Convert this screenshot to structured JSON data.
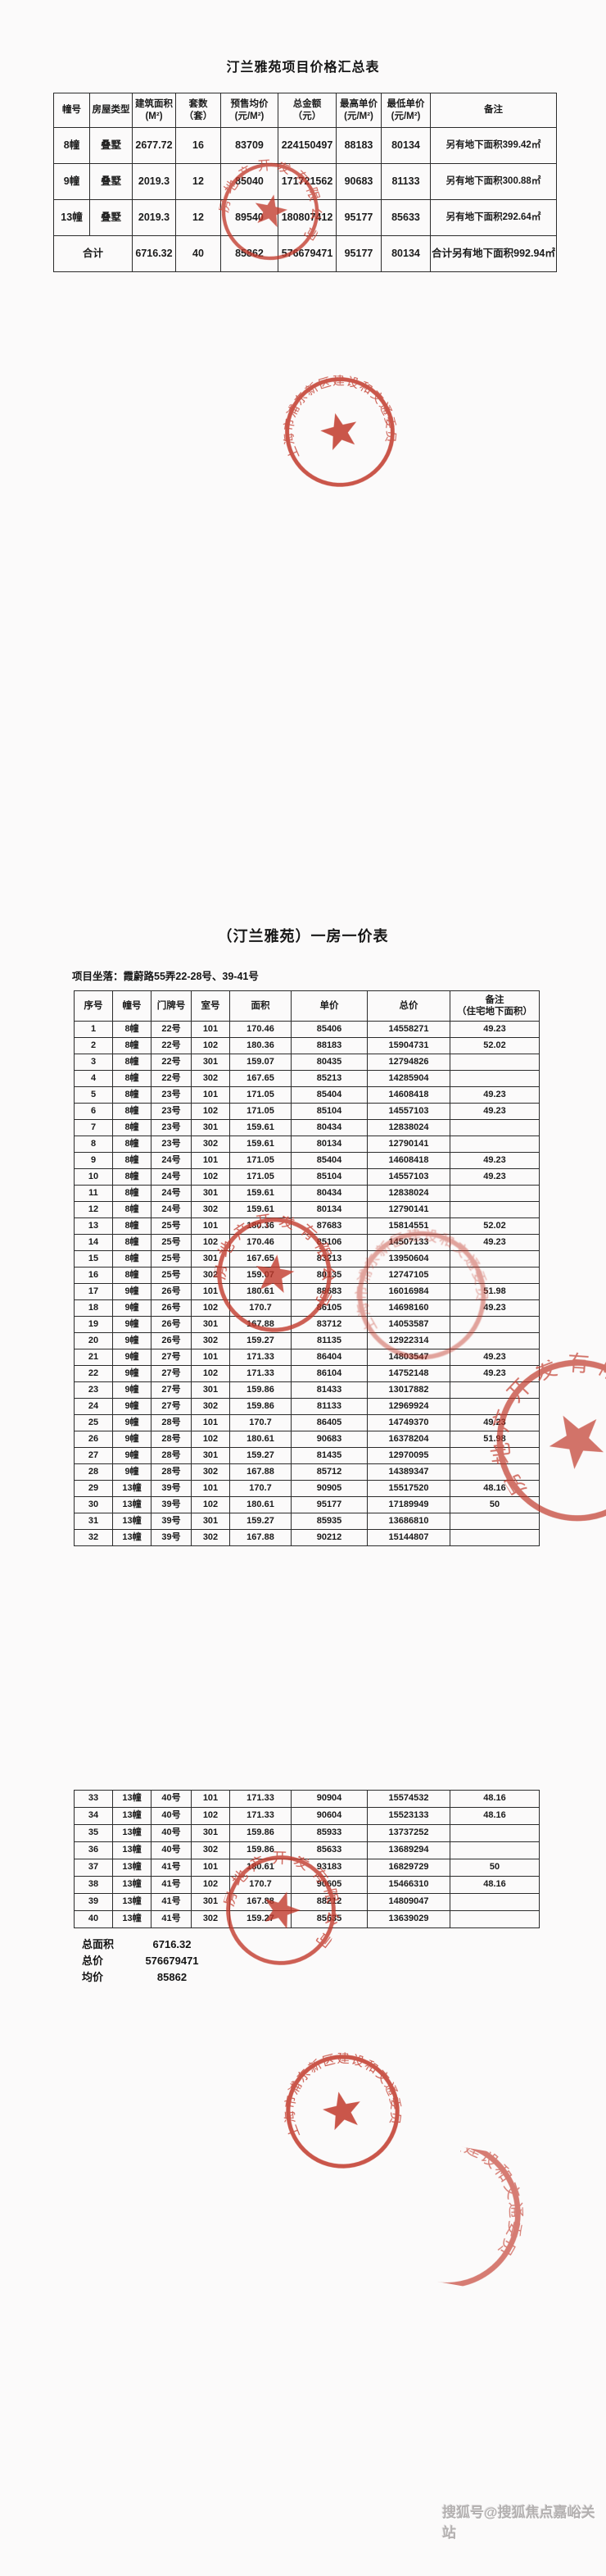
{
  "page": {
    "watermark": "搜狐号@搜狐焦点嘉峪关站",
    "stamp_color": "#c23a2c",
    "background": "#fbfafa"
  },
  "summary_table": {
    "title": "汀兰雅苑项目价格汇总表",
    "headers": [
      "幢号",
      "房屋类型",
      "建筑面积\n(M²)",
      "套数\n（套）",
      "预售均价\n(元/M²)",
      "总金额\n（元）",
      "最高单价\n(元/M²)",
      "最低单价\n(元/M²)",
      "备注"
    ],
    "rows": [
      [
        "8幢",
        "叠墅",
        "2677.72",
        "16",
        "83709",
        "224150497",
        "88183",
        "80134",
        "另有地下面积399.42㎡"
      ],
      [
        "9幢",
        "叠墅",
        "2019.3",
        "12",
        "85040",
        "171721562",
        "90683",
        "81133",
        "另有地下面积300.88㎡"
      ],
      [
        "13幢",
        "叠墅",
        "2019.3",
        "12",
        "89540",
        "180807412",
        "95177",
        "85633",
        "另有地下面积292.64㎡"
      ],
      [
        "合计",
        null,
        "6716.32",
        "40",
        "85862",
        "576679471",
        "95177",
        "80134",
        "合计另有地下面积992.94㎡"
      ]
    ]
  },
  "price_table": {
    "title": "（汀兰雅苑）一房一价表",
    "location_label": "项目坐落：",
    "location": "霞蔚路55弄22-28号、39-41号",
    "headers": [
      "序号",
      "幢号",
      "门牌号",
      "室号",
      "面积",
      "单价",
      "总价",
      "备注\n（住宅地下面积）"
    ],
    "rows": [
      [
        "1",
        "8幢",
        "22号",
        "101",
        "170.46",
        "85406",
        "14558271",
        "49.23"
      ],
      [
        "2",
        "8幢",
        "22号",
        "102",
        "180.36",
        "88183",
        "15904731",
        "52.02"
      ],
      [
        "3",
        "8幢",
        "22号",
        "301",
        "159.07",
        "80435",
        "12794826",
        ""
      ],
      [
        "4",
        "8幢",
        "22号",
        "302",
        "167.65",
        "85213",
        "14285904",
        ""
      ],
      [
        "5",
        "8幢",
        "23号",
        "101",
        "171.05",
        "85404",
        "14608418",
        "49.23"
      ],
      [
        "6",
        "8幢",
        "23号",
        "102",
        "171.05",
        "85104",
        "14557103",
        "49.23"
      ],
      [
        "7",
        "8幢",
        "23号",
        "301",
        "159.61",
        "80434",
        "12838024",
        ""
      ],
      [
        "8",
        "8幢",
        "23号",
        "302",
        "159.61",
        "80134",
        "12790141",
        ""
      ],
      [
        "9",
        "8幢",
        "24号",
        "101",
        "171.05",
        "85404",
        "14608418",
        "49.23"
      ],
      [
        "10",
        "8幢",
        "24号",
        "102",
        "171.05",
        "85104",
        "14557103",
        "49.23"
      ],
      [
        "11",
        "8幢",
        "24号",
        "301",
        "159.61",
        "80434",
        "12838024",
        ""
      ],
      [
        "12",
        "8幢",
        "24号",
        "302",
        "159.61",
        "80134",
        "12790141",
        ""
      ],
      [
        "13",
        "8幢",
        "25号",
        "101",
        "180.36",
        "87683",
        "15814551",
        "52.02"
      ],
      [
        "14",
        "8幢",
        "25号",
        "102",
        "170.46",
        "85106",
        "14507133",
        "49.23"
      ],
      [
        "15",
        "8幢",
        "25号",
        "301",
        "167.65",
        "83213",
        "13950604",
        ""
      ],
      [
        "16",
        "8幢",
        "25号",
        "302",
        "159.07",
        "80135",
        "12747105",
        ""
      ],
      [
        "17",
        "9幢",
        "26号",
        "101",
        "180.61",
        "88683",
        "16016984",
        "51.98"
      ],
      [
        "18",
        "9幢",
        "26号",
        "102",
        "170.7",
        "86105",
        "14698160",
        "49.23"
      ],
      [
        "19",
        "9幢",
        "26号",
        "301",
        "167.88",
        "83712",
        "14053587",
        ""
      ],
      [
        "20",
        "9幢",
        "26号",
        "302",
        "159.27",
        "81135",
        "12922314",
        ""
      ],
      [
        "21",
        "9幢",
        "27号",
        "101",
        "171.33",
        "86404",
        "14803547",
        "49.23"
      ],
      [
        "22",
        "9幢",
        "27号",
        "102",
        "171.33",
        "86104",
        "14752148",
        "49.23"
      ],
      [
        "23",
        "9幢",
        "27号",
        "301",
        "159.86",
        "81433",
        "13017882",
        ""
      ],
      [
        "24",
        "9幢",
        "27号",
        "302",
        "159.86",
        "81133",
        "12969924",
        ""
      ],
      [
        "25",
        "9幢",
        "28号",
        "101",
        "170.7",
        "86405",
        "14749370",
        "49.23"
      ],
      [
        "26",
        "9幢",
        "28号",
        "102",
        "180.61",
        "90683",
        "16378204",
        "51.98"
      ],
      [
        "27",
        "9幢",
        "28号",
        "301",
        "159.27",
        "81435",
        "12970095",
        ""
      ],
      [
        "28",
        "9幢",
        "28号",
        "302",
        "167.88",
        "85712",
        "14389347",
        ""
      ],
      [
        "29",
        "13幢",
        "39号",
        "101",
        "170.7",
        "90905",
        "15517520",
        "48.16"
      ],
      [
        "30",
        "13幢",
        "39号",
        "102",
        "180.61",
        "95177",
        "17189949",
        "50"
      ],
      [
        "31",
        "13幢",
        "39号",
        "301",
        "159.27",
        "85935",
        "13686810",
        ""
      ],
      [
        "32",
        "13幢",
        "39号",
        "302",
        "167.88",
        "90212",
        "15144807",
        ""
      ]
    ]
  },
  "price_table_cont": {
    "rows": [
      [
        "33",
        "13幢",
        "40号",
        "101",
        "171.33",
        "90904",
        "15574532",
        "48.16"
      ],
      [
        "34",
        "13幢",
        "40号",
        "102",
        "171.33",
        "90604",
        "15523133",
        "48.16"
      ],
      [
        "35",
        "13幢",
        "40号",
        "301",
        "159.86",
        "85933",
        "13737252",
        ""
      ],
      [
        "36",
        "13幢",
        "40号",
        "302",
        "159.86",
        "85633",
        "13689294",
        ""
      ],
      [
        "37",
        "13幢",
        "41号",
        "101",
        "180.61",
        "93183",
        "16829729",
        "50"
      ],
      [
        "38",
        "13幢",
        "41号",
        "102",
        "170.7",
        "90605",
        "15466310",
        "48.16"
      ],
      [
        "39",
        "13幢",
        "41号",
        "301",
        "167.88",
        "88212",
        "14809047",
        ""
      ],
      [
        "40",
        "13幢",
        "41号",
        "302",
        "159.27",
        "85635",
        "13639029",
        ""
      ]
    ]
  },
  "totals": {
    "area_label": "总面积",
    "area_value": "6716.32",
    "total_label": "总价",
    "total_value": "576679471",
    "avg_label": "均价",
    "avg_value": "85862"
  },
  "stamps": {
    "gov_text": "上海市浦东新区建设和交通委员会",
    "company_text": "房地产开发有限公司"
  }
}
